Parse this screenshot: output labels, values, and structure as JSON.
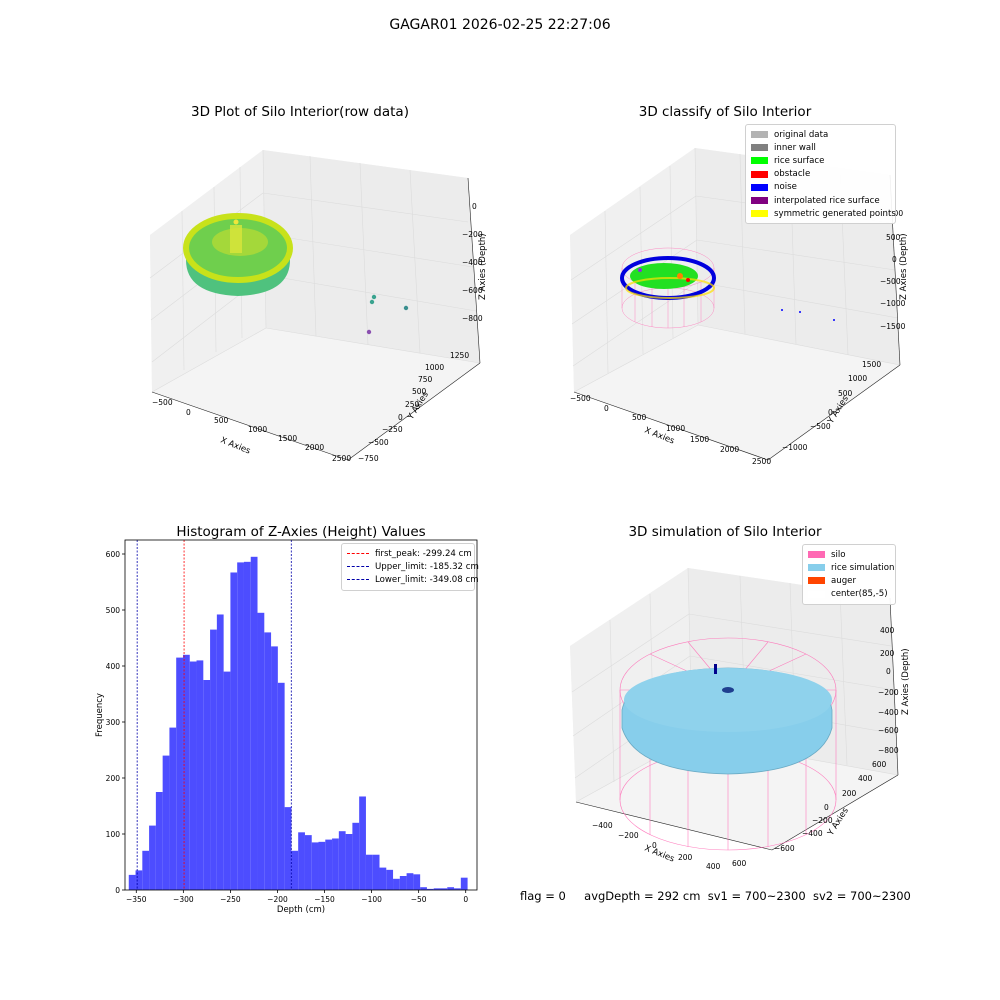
{
  "suptitle": "GAGAR01 2026-02-25 22:27:06",
  "panels": {
    "raw": {
      "title": "3D Plot of Silo Interior(row data)",
      "xlabel": "X Axies",
      "ylabel": "Y Axies",
      "zlabel": "Z Axies (Depth)",
      "xticks": [
        "−500",
        "0",
        "500",
        "1000",
        "1500",
        "2000",
        "2500"
      ],
      "yticks": [
        "−750",
        "−500",
        "−250",
        "0",
        "250",
        "500",
        "750",
        "1000",
        "1250"
      ],
      "zticks": [
        "0",
        "−200",
        "−400",
        "−600",
        "−800"
      ]
    },
    "classify": {
      "title": "3D classify of Silo Interior",
      "xlabel": "X Axies",
      "ylabel": "Y Axies",
      "zlabel": "Z Axies (Depth)",
      "xticks": [
        "−500",
        "0",
        "500",
        "1000",
        "1500",
        "2000",
        "2500"
      ],
      "yticks": [
        "−1000",
        "−500",
        "0",
        "500",
        "1000",
        "1500"
      ],
      "zticks": [
        "1000",
        "500",
        "0",
        "−500",
        "−1000",
        "−1500"
      ],
      "legend": [
        {
          "label": "original data",
          "color": "#b3b3b3"
        },
        {
          "label": "inner wall",
          "color": "#808080"
        },
        {
          "label": "rice surface",
          "color": "#00ff00"
        },
        {
          "label": "obstacle",
          "color": "#ff0000"
        },
        {
          "label": "noise",
          "color": "#0000ff"
        },
        {
          "label": "interpolated rice surface",
          "color": "#800080"
        },
        {
          "label": "symmetric generated points",
          "color": "#ffff00"
        }
      ]
    },
    "simulation": {
      "title": "3D simulation of Silo Interior",
      "xlabel": "X Axies",
      "ylabel": "Y Axies",
      "zlabel": "Z Axies (Depth)",
      "xticks": [
        "−400",
        "−200",
        "0",
        "200",
        "400",
        "600"
      ],
      "yticks": [
        "−600",
        "−400",
        "−200",
        "0",
        "200",
        "400",
        "600"
      ],
      "zticks": [
        "400",
        "200",
        "0",
        "−200",
        "−400",
        "−600",
        "−800"
      ],
      "legend": [
        {
          "label": "silo",
          "color": "#ff69b4"
        },
        {
          "label": "rice simulation",
          "color": "#87ceeb"
        },
        {
          "label": "auger",
          "color": "#ff4500"
        },
        {
          "label": "center(85,-5)",
          "color": "#ffffff"
        }
      ]
    }
  },
  "chart_data": {
    "type": "bar",
    "title": "Histogram of Z-Axies (Height) Values",
    "xlabel": "Depth (cm)",
    "ylabel": "Frequency",
    "xlim": [
      -362,
      12
    ],
    "ylim": [
      0,
      625
    ],
    "xticks": [
      -350,
      -300,
      -250,
      -200,
      -150,
      -100,
      -50,
      0
    ],
    "yticks": [
      0,
      100,
      200,
      300,
      400,
      500,
      600
    ],
    "bin_start": -358,
    "bin_width": 7.2,
    "color": "#4d4dff",
    "values": [
      27,
      35,
      70,
      115,
      175,
      240,
      290,
      415,
      420,
      408,
      410,
      375,
      465,
      492,
      390,
      567,
      585,
      586,
      595,
      495,
      460,
      435,
      370,
      148,
      70,
      103,
      98,
      85,
      86,
      90,
      92,
      105,
      100,
      120,
      167,
      63,
      63,
      40,
      36,
      20,
      25,
      30,
      28,
      5,
      2,
      3,
      3,
      5,
      3,
      22
    ],
    "vlines": [
      {
        "label": "first_peak: -299.24 cm",
        "x": -299.24,
        "color": "#ff0000"
      },
      {
        "label": "Upper_limit: -185.32 cm",
        "x": -185.32,
        "color": "#0000aa"
      },
      {
        "label": "Lower_limit: -349.08 cm",
        "x": -349.08,
        "color": "#0000aa"
      }
    ]
  },
  "footer": {
    "flag": "flag = 0",
    "avg": "avgDepth = 292 cm",
    "sv1": "sv1 = 700~2300",
    "sv2": "sv2 = 700~2300"
  }
}
